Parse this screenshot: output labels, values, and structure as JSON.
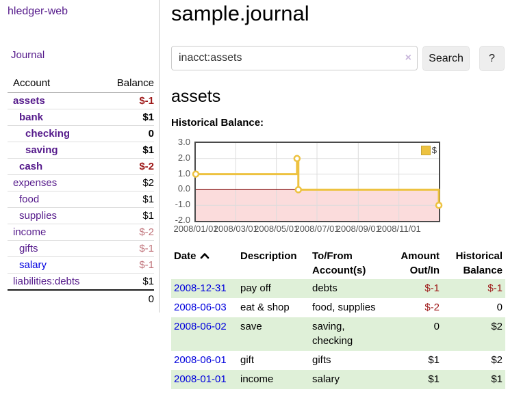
{
  "sidebar": {
    "brand": "hledger-web",
    "journal_link": "Journal",
    "accounts_table": {
      "headers": {
        "account": "Account",
        "balance": "Balance"
      },
      "rows": [
        {
          "name": "assets",
          "indent": 0,
          "bold": true,
          "balance": "$-1",
          "balance_style": "neg-strong",
          "link_color": "purple"
        },
        {
          "name": "bank",
          "indent": 1,
          "bold": true,
          "balance": "$1",
          "balance_style": "normal",
          "link_color": "purple"
        },
        {
          "name": "checking",
          "indent": 2,
          "bold": true,
          "balance": "0",
          "balance_style": "normal",
          "link_color": "purple"
        },
        {
          "name": "saving",
          "indent": 2,
          "bold": true,
          "balance": "$1",
          "balance_style": "normal",
          "link_color": "purple"
        },
        {
          "name": "cash",
          "indent": 1,
          "bold": true,
          "balance": "$-2",
          "balance_style": "neg-strong",
          "link_color": "purple"
        },
        {
          "name": "expenses",
          "indent": 0,
          "bold": false,
          "balance": "$2",
          "balance_style": "normal",
          "link_color": "purple"
        },
        {
          "name": "food",
          "indent": 1,
          "bold": false,
          "balance": "$1",
          "balance_style": "normal",
          "link_color": "purple"
        },
        {
          "name": "supplies",
          "indent": 1,
          "bold": false,
          "balance": "$1",
          "balance_style": "normal",
          "link_color": "purple"
        },
        {
          "name": "income",
          "indent": 0,
          "bold": false,
          "balance": "$-2",
          "balance_style": "neg-soft",
          "link_color": "purple"
        },
        {
          "name": "gifts",
          "indent": 1,
          "bold": false,
          "balance": "$-1",
          "balance_style": "neg-soft",
          "link_color": "purple"
        },
        {
          "name": "salary",
          "indent": 1,
          "bold": false,
          "balance": "$-1",
          "balance_style": "neg-soft",
          "link_color": "blue"
        },
        {
          "name": "liabilities:debts",
          "indent": 0,
          "bold": false,
          "balance": "$1",
          "balance_style": "normal",
          "link_color": "purple"
        }
      ],
      "total": "0"
    }
  },
  "header": {
    "title": "sample.journal"
  },
  "search": {
    "value": "inacct:assets",
    "clear_icon": "×",
    "search_button": "Search",
    "help_button": "?"
  },
  "account_page": {
    "heading": "assets",
    "chart_label": "Historical Balance:"
  },
  "chart_data": {
    "type": "line",
    "step": true,
    "title": "Historical Balance",
    "series": [
      {
        "name": "$",
        "color": "#edc240",
        "points": [
          [
            "2008-01-01",
            1
          ],
          [
            "2008-06-01",
            2
          ],
          [
            "2008-06-03",
            0
          ],
          [
            "2008-12-31",
            -1
          ]
        ]
      }
    ],
    "x_range": [
      "2008-01-01",
      "2008-12-31"
    ],
    "x_ticks": [
      {
        "date": "2008-01-01",
        "label": "2008/01/01"
      },
      {
        "date": "2008-03-01",
        "label": "2008/03/01"
      },
      {
        "date": "2008-05-01",
        "label": "2008/05/01"
      },
      {
        "date": "2008-07-01",
        "label": "2008/07/01"
      },
      {
        "date": "2008-09-01",
        "label": "2008/09/01"
      },
      {
        "date": "2008-11-01",
        "label": "2008/11/01"
      }
    ],
    "y_ticks": [
      3.0,
      2.0,
      1.0,
      0.0,
      -1.0,
      -2.0
    ],
    "ylim": [
      -2,
      3
    ],
    "grid": true,
    "legend_position": "top-right",
    "colors": {
      "negative_region": "#fbdcdc",
      "zero_line": "#8c1717",
      "gridline": "#dcdcdc",
      "plot_border": "#4a4a4a"
    }
  },
  "register_table": {
    "columns": [
      {
        "label": "Date",
        "align": "left",
        "sort": "asc"
      },
      {
        "label": "Description",
        "align": "left"
      },
      {
        "label": "To/From\nAccount(s)",
        "align": "left"
      },
      {
        "label": "Amount\nOut/In",
        "align": "right"
      },
      {
        "label": "Historical\nBalance",
        "align": "right"
      }
    ],
    "rows": [
      {
        "date": "2008-12-31",
        "description": "pay off",
        "accounts": "debts",
        "amount": "$-1",
        "balance": "$-1"
      },
      {
        "date": "2008-06-03",
        "description": "eat & shop",
        "accounts": "food, supplies",
        "amount": "$-2",
        "balance": "0"
      },
      {
        "date": "2008-06-02",
        "description": "save",
        "accounts": "saving, checking",
        "amount": "0",
        "balance": "$2"
      },
      {
        "date": "2008-06-01",
        "description": "gift",
        "accounts": "gifts",
        "amount": "$1",
        "balance": "$2"
      },
      {
        "date": "2008-01-01",
        "description": "income",
        "accounts": "salary",
        "amount": "$1",
        "balance": "$1"
      }
    ],
    "stripe_color": "#dff0d8"
  },
  "colors": {
    "link_purple": "#551a8b",
    "link_blue": "#0000dd",
    "negative_strong": "#9d1717",
    "negative_soft": "#c0737a",
    "series_gold": "#edc240"
  }
}
